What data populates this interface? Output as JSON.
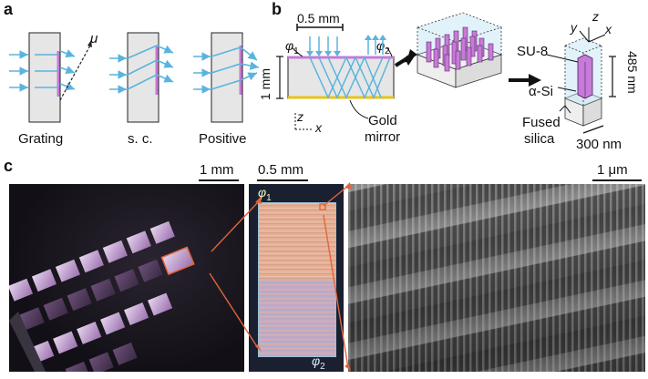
{
  "panels": {
    "a": {
      "label": "a",
      "u_label": "u",
      "captions": [
        "Grating",
        "s. c.",
        "Positive"
      ]
    },
    "b": {
      "label": "b",
      "scale": "0.5 mm",
      "phi1": "φ",
      "phi1_sub": "1",
      "phi2": "φ",
      "phi2_sub": "2",
      "height": "1 mm",
      "axis_z": "z",
      "axis_x": "x",
      "mirror_label_line1": "Gold",
      "mirror_label_line2": "mirror",
      "su8": "SU-8",
      "asi": "α-Si",
      "fused_line1": "Fused",
      "fused_line2": "silica",
      "height_nm": "485 nm",
      "width_nm": "300 nm",
      "axis_y": "y"
    },
    "c": {
      "label": "c",
      "scale1": "1 mm",
      "scale2": "0.5 mm",
      "scale3": "1 μm",
      "phi1": "φ",
      "phi1_sub": "1",
      "phi2": "φ",
      "phi2_sub": "2"
    }
  },
  "colors": {
    "beam": "#5ab4de",
    "metasurface": "#c77ad8",
    "gold": "#e8c21a",
    "arrow_orange": "#e2643a",
    "block_fill": "#e6e6e6"
  }
}
